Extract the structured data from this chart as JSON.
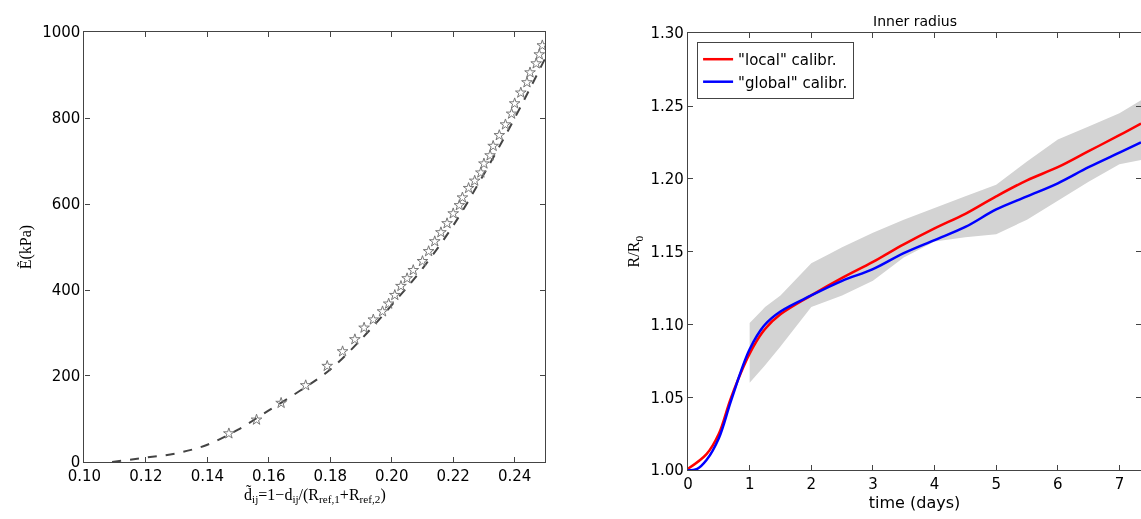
{
  "chart_data": [
    {
      "type": "line",
      "xlabel": "d̃$_{ij}$=1−d$_{ij}$/(R$_{ref,1}$+R$_{ref,2}$)",
      "ylabel": "Ẽ(kPa)",
      "xlim": [
        0.1,
        0.25
      ],
      "ylim": [
        0,
        1000
      ],
      "xticks": [
        {
          "value": 0.1,
          "label": "0.10"
        },
        0.12,
        0.14,
        0.16,
        0.18,
        {
          "value": 0.2,
          "label": "0.20"
        },
        0.22,
        0.24
      ],
      "yticks": [
        0,
        200,
        400,
        600,
        800,
        1000
      ],
      "legend": false,
      "series": [
        {
          "type": "line",
          "color": "#444444",
          "line_style": "dashed",
          "marker": "none",
          "x": [
            0.109,
            0.12,
            0.13,
            0.14,
            0.15,
            0.16,
            0.17,
            0.18,
            0.19,
            0.2,
            0.21,
            0.22,
            0.23,
            0.24,
            0.25
          ],
          "values": [
            0,
            10,
            20,
            40,
            75,
            120,
            165,
            215,
            285,
            365,
            450,
            550,
            670,
            800,
            940
          ]
        },
        {
          "type": "scatter",
          "color": "#777777",
          "marker": "star",
          "x": [
            0.147,
            0.156,
            0.164,
            0.172,
            0.179,
            0.184,
            0.188,
            0.191,
            0.194,
            0.197,
            0.199,
            0.201,
            0.203,
            0.205,
            0.207,
            0.21,
            0.212,
            0.214,
            0.216,
            0.218,
            0.22,
            0.222,
            0.223,
            0.225,
            0.227,
            0.229,
            0.23,
            0.232,
            0.233,
            0.235,
            0.237,
            0.239,
            0.24,
            0.242,
            0.244,
            0.245,
            0.247,
            0.248,
            0.249
          ],
          "values": [
            66,
            98,
            137,
            178,
            223,
            257,
            285,
            312,
            331,
            350,
            368,
            388,
            409,
            427,
            446,
            467,
            490,
            513,
            534,
            555,
            578,
            597,
            615,
            637,
            654,
            673,
            694,
            713,
            735,
            760,
            785,
            810,
            834,
            859,
            883,
            906,
            927,
            948,
            969
          ]
        }
      ]
    },
    {
      "type": "line",
      "title": "Inner radius",
      "xlabel": "time (days)",
      "ylabel": "R/R$_{0}$",
      "xlim": [
        0,
        7.35
      ],
      "ylim": [
        1.0,
        1.3
      ],
      "xticks": [
        0,
        1,
        2,
        3,
        4,
        5,
        6,
        7
      ],
      "yticks": [
        {
          "value": 1.0,
          "label": "1.00"
        },
        1.05,
        {
          "value": 1.1,
          "label": "1.10"
        },
        1.15,
        {
          "value": 1.2,
          "label": "1.20"
        },
        1.25,
        {
          "value": 1.3,
          "label": "1.30"
        }
      ],
      "legend": "top left",
      "marker": "none",
      "line_style": "solid",
      "series": [
        {
          "name": "\"local\" calibr.",
          "color": "#ff0000",
          "x": [
            0,
            0.3,
            0.5,
            0.7,
            1,
            1.25,
            1.5,
            2,
            2.5,
            3,
            3.5,
            4,
            4.5,
            5,
            5.5,
            6,
            6.5,
            7,
            7.35
          ],
          "values": [
            1.001,
            1.011,
            1.025,
            1.05,
            1.08,
            1.097,
            1.107,
            1.12,
            1.132,
            1.143,
            1.155,
            1.166,
            1.176,
            1.188,
            1.199,
            1.208,
            1.219,
            1.23,
            1.238
          ],
          "lower": [
            null,
            null,
            null,
            null,
            1.06,
            1.072,
            1.085,
            1.112,
            1.12,
            1.13,
            1.146,
            1.157,
            1.16,
            1.162,
            1.172,
            1.185,
            1.198,
            1.21,
            1.213
          ],
          "upper": [
            null,
            null,
            null,
            null,
            1.101,
            1.112,
            1.12,
            1.142,
            1.153,
            1.163,
            1.172,
            1.18,
            1.188,
            1.196,
            1.212,
            1.227,
            1.236,
            1.245,
            1.254
          ]
        },
        {
          "name": "\"global\" calibr.",
          "color": "#0000ff",
          "x": [
            0,
            0.15,
            0.3,
            0.5,
            0.7,
            1,
            1.25,
            1.5,
            2,
            2.5,
            3,
            3.5,
            4,
            4.5,
            5,
            5.5,
            6,
            6.5,
            7,
            7.35
          ],
          "values": [
            1.0,
            1.001,
            1.007,
            1.022,
            1.048,
            1.083,
            1.1,
            1.109,
            1.12,
            1.13,
            1.138,
            1.149,
            1.158,
            1.167,
            1.179,
            1.188,
            1.197,
            1.208,
            1.218,
            1.225
          ]
        }
      ]
    }
  ]
}
